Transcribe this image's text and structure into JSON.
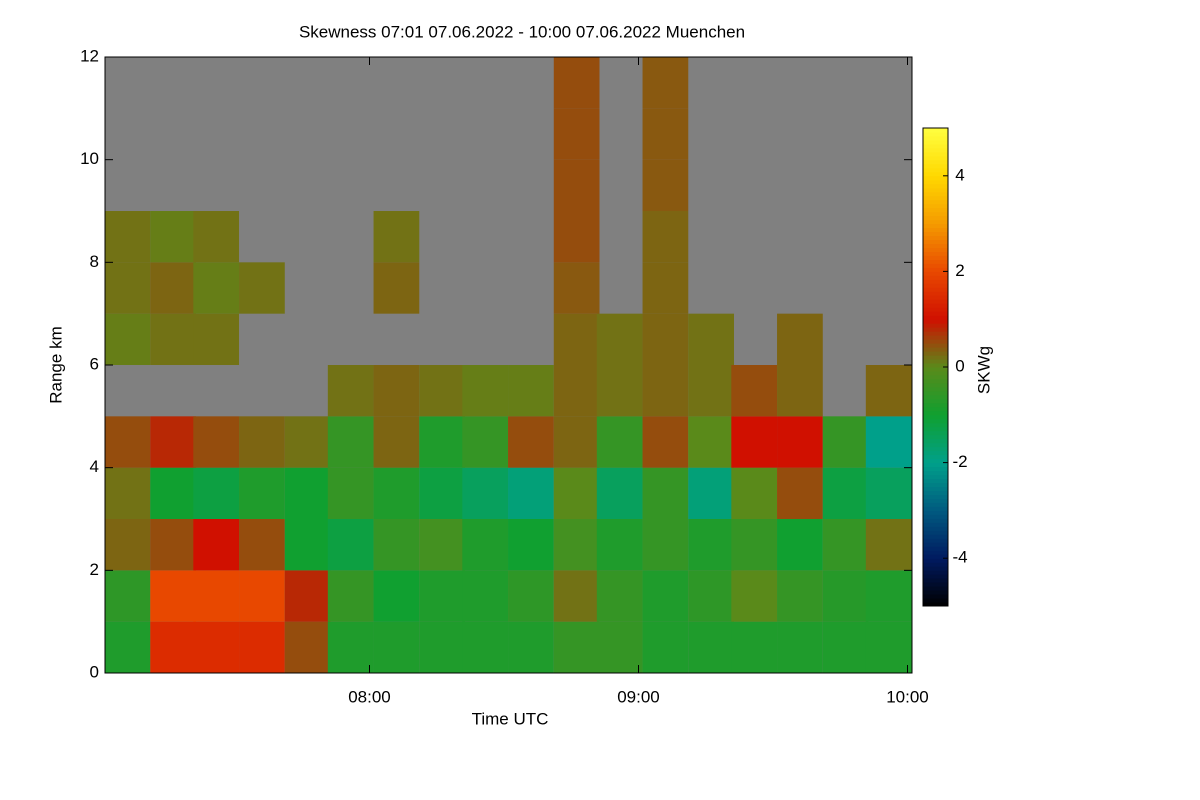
{
  "chart_data": {
    "type": "heatmap",
    "title": "Skewness   07:01 07.06.2022 - 10:00 07.06.2022 Muenchen",
    "x_label": "Time UTC",
    "y_label": "Range km",
    "colorbar_label": "SKWg",
    "xlim": [
      7.0167,
      10.0167
    ],
    "xticks": [
      {
        "value": 8,
        "label": "08:00"
      },
      {
        "value": 9,
        "label": "09:00"
      },
      {
        "value": 10,
        "label": "10:00"
      }
    ],
    "ylim": [
      0,
      12
    ],
    "yticks": [
      0,
      2,
      4,
      6,
      8,
      10,
      12
    ],
    "clim": [
      -5,
      5
    ],
    "cticks": [
      -4,
      -2,
      0,
      2,
      4
    ],
    "missing_color": "#808080",
    "colorscale": [
      [
        -5,
        "#000000"
      ],
      [
        -4,
        "#001a60"
      ],
      [
        -3,
        "#005a80"
      ],
      [
        -2,
        "#00a08a"
      ],
      [
        -1,
        "#10a030"
      ],
      [
        0,
        "#5a8a1a"
      ],
      [
        1,
        "#d01000"
      ],
      [
        2,
        "#e84800"
      ],
      [
        3,
        "#f59a00"
      ],
      [
        4,
        "#ffd800"
      ],
      [
        5,
        "#ffff40"
      ]
    ],
    "x": [
      7.1,
      7.27,
      7.43,
      7.6,
      7.77,
      7.93,
      8.1,
      8.27,
      8.43,
      8.6,
      8.77,
      8.93,
      9.1,
      9.27,
      9.43,
      9.6,
      9.77,
      9.93
    ],
    "y": [
      0.5,
      1.5,
      2.5,
      3.5,
      4.5,
      5.5,
      6.5,
      7.5,
      8.5,
      9.5,
      10.5,
      11.5
    ],
    "z": [
      [
        -0.8,
        1.5,
        1.5,
        1.5,
        0.5,
        -0.8,
        -0.8,
        -0.8,
        -0.8,
        -0.8,
        -0.5,
        -0.5,
        -0.8,
        -0.8,
        -0.8,
        -0.8,
        -0.8,
        -0.8
      ],
      [
        -0.6,
        2,
        2,
        2,
        0.8,
        -0.5,
        -1,
        -0.8,
        -0.8,
        -0.6,
        0.2,
        -0.5,
        -0.8,
        -0.6,
        0,
        -0.5,
        -0.7,
        -0.8
      ],
      [
        0.3,
        0.5,
        1,
        0.5,
        -1,
        -1.2,
        -0.5,
        -0.3,
        -0.8,
        -1,
        -0.3,
        -0.8,
        -0.5,
        -0.8,
        -0.5,
        -1,
        -0.5,
        0.2
      ],
      [
        0.2,
        -1,
        -1.2,
        -0.8,
        -1,
        -0.5,
        -0.8,
        -1.2,
        -1.5,
        -1.8,
        0,
        -1.5,
        -0.5,
        -1.8,
        0,
        0.5,
        -1.2,
        -1.5
      ],
      [
        0.5,
        0.8,
        0.5,
        0.3,
        0.2,
        -0.5,
        0.3,
        -0.8,
        -0.5,
        0.5,
        0.3,
        -0.5,
        0.5,
        0,
        1,
        1,
        -0.5,
        -2
      ],
      [
        null,
        null,
        null,
        null,
        null,
        0.2,
        0.3,
        0.2,
        0.1,
        0.1,
        0.3,
        0.2,
        0.3,
        0.2,
        0.5,
        0.3,
        null,
        0.3
      ],
      [
        0.1,
        0.2,
        0.2,
        null,
        null,
        null,
        null,
        null,
        null,
        null,
        0.3,
        0.2,
        0.3,
        0.2,
        null,
        0.3,
        null,
        null
      ],
      [
        0.2,
        0.3,
        0.1,
        0.2,
        null,
        null,
        0.3,
        null,
        null,
        null,
        0.4,
        null,
        0.3,
        null,
        null,
        null,
        null,
        null
      ],
      [
        0.2,
        0.1,
        0.2,
        null,
        null,
        null,
        0.2,
        null,
        null,
        null,
        0.5,
        null,
        0.3,
        null,
        null,
        null,
        null,
        null
      ],
      [
        null,
        null,
        null,
        null,
        null,
        null,
        null,
        null,
        null,
        null,
        0.5,
        null,
        0.4,
        null,
        null,
        null,
        null,
        null
      ],
      [
        null,
        null,
        null,
        null,
        null,
        null,
        null,
        null,
        null,
        null,
        0.5,
        null,
        0.4,
        null,
        null,
        null,
        null,
        null
      ],
      [
        null,
        null,
        null,
        null,
        null,
        null,
        null,
        null,
        null,
        null,
        0.5,
        null,
        0.4,
        null,
        null,
        null,
        null,
        null
      ]
    ]
  }
}
